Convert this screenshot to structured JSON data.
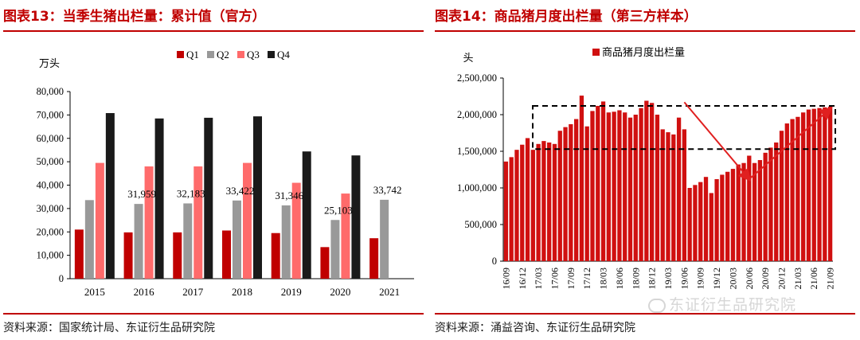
{
  "left": {
    "title": "图表13：当季生猪出栏量：累计值（官方）",
    "source": "资料来源：国家统计局、东证衍生品研究院"
  },
  "right": {
    "title": "图表14：商品猪月度出栏量（第三方样本）",
    "source": "资料来源：涌益咨询、东证衍生品研究院"
  },
  "watermark": "东证衍生品研究院",
  "colors": {
    "accent": "#c00000",
    "q1": "#c00000",
    "q2": "#999999",
    "q3": "#ff6b6b",
    "q4": "#1a1a1a",
    "bar": "#d01010",
    "arrow": "#e02020"
  },
  "chart_data": [
    {
      "type": "bar",
      "title": "",
      "ylabel": "万头",
      "ylim": [
        0,
        80000
      ],
      "yticks": [
        0,
        10000,
        20000,
        30000,
        40000,
        50000,
        60000,
        70000,
        80000
      ],
      "ytick_labels": [
        "0",
        "10,000",
        "20,000",
        "30,000",
        "40,000",
        "50,000",
        "60,000",
        "70,000",
        "80,000"
      ],
      "categories": [
        "2015",
        "2016",
        "2017",
        "2018",
        "2019",
        "2020",
        "2021"
      ],
      "series": [
        {
          "name": "Q1",
          "values": [
            21000,
            19800,
            19800,
            20600,
            19500,
            13500,
            17300
          ]
        },
        {
          "name": "Q2",
          "values": [
            33600,
            31959,
            32183,
            33422,
            31346,
            25103,
            33742
          ]
        },
        {
          "name": "Q3",
          "values": [
            49500,
            48000,
            48000,
            49500,
            41000,
            36400,
            null
          ]
        },
        {
          "name": "Q4",
          "values": [
            70800,
            68500,
            68800,
            69400,
            54400,
            52700,
            null
          ]
        }
      ],
      "annotations": [
        {
          "category": "2016",
          "series": "Q2",
          "text": "31,959"
        },
        {
          "category": "2017",
          "series": "Q2",
          "text": "32,183"
        },
        {
          "category": "2018",
          "series": "Q2",
          "text": "33,422"
        },
        {
          "category": "2019",
          "series": "Q2",
          "text": "31,346"
        },
        {
          "category": "2020",
          "series": "Q2",
          "text": "25,103"
        },
        {
          "category": "2021",
          "series": "Q2",
          "text": "33,742"
        }
      ],
      "legend": [
        "Q1",
        "Q2",
        "Q3",
        "Q4"
      ],
      "legend_position": "top"
    },
    {
      "type": "bar",
      "title": "",
      "ylabel": "头",
      "ylim": [
        0,
        2500000
      ],
      "yticks": [
        0,
        500000,
        1000000,
        1500000,
        2000000,
        2500000
      ],
      "ytick_labels": [
        "0",
        "500,000",
        "1,000,000",
        "1,500,000",
        "2,000,000",
        "2,500,000"
      ],
      "series_name": "商品猪月度出栏量",
      "months": [
        "16/09",
        "16/10",
        "16/11",
        "16/12",
        "17/01",
        "17/02",
        "17/03",
        "17/04",
        "17/05",
        "17/06",
        "17/07",
        "17/08",
        "17/09",
        "17/10",
        "17/11",
        "17/12",
        "18/01",
        "18/02",
        "18/03",
        "18/04",
        "18/05",
        "18/06",
        "18/07",
        "18/08",
        "18/09",
        "18/10",
        "18/11",
        "18/12",
        "19/01",
        "19/02",
        "19/03",
        "19/04",
        "19/05",
        "19/06",
        "19/07",
        "19/08",
        "19/09",
        "19/10",
        "19/11",
        "19/12",
        "20/01",
        "20/02",
        "20/03",
        "20/04",
        "20/05",
        "20/06",
        "20/07",
        "20/08",
        "20/09",
        "20/10",
        "20/11",
        "20/12",
        "21/01",
        "21/02",
        "21/03",
        "21/04",
        "21/05",
        "21/06",
        "21/07",
        "21/08",
        "21/09"
      ],
      "values": [
        1360000,
        1420000,
        1520000,
        1590000,
        1680000,
        1520000,
        1600000,
        1640000,
        1620000,
        1600000,
        1780000,
        1830000,
        1870000,
        1940000,
        2260000,
        1840000,
        2050000,
        2120000,
        2180000,
        2030000,
        2040000,
        2060000,
        2030000,
        1960000,
        2000000,
        2090000,
        2190000,
        2160000,
        2000000,
        1800000,
        1760000,
        1730000,
        1960000,
        1800000,
        1000000,
        1040000,
        1080000,
        1150000,
        930000,
        1120000,
        1180000,
        1220000,
        1260000,
        1320000,
        1340000,
        1440000,
        1340000,
        1380000,
        1480000,
        1550000,
        1620000,
        1780000,
        1880000,
        1940000,
        1970000,
        2030000,
        2070000,
        2080000,
        2090000,
        2100000,
        2110000
      ],
      "xtick_labels": [
        "16/09",
        "16/12",
        "17/03",
        "17/06",
        "17/09",
        "17/12",
        "18/03",
        "18/06",
        "18/09",
        "18/12",
        "19/03",
        "19/06",
        "19/09",
        "19/12",
        "20/03",
        "20/06",
        "20/09",
        "20/12",
        "21/03",
        "21/06",
        "21/09"
      ],
      "highlight_band": [
        1530000,
        2120000
      ],
      "arrows": [
        {
          "from": [
            "19/06",
            2170000
          ],
          "to": [
            "20/06",
            1120000
          ]
        },
        {
          "from": [
            "20/06",
            1120000
          ],
          "to": [
            "21/09",
            2080000
          ]
        }
      ],
      "legend": [
        "商品猪月度出栏量"
      ],
      "legend_position": "top"
    }
  ]
}
